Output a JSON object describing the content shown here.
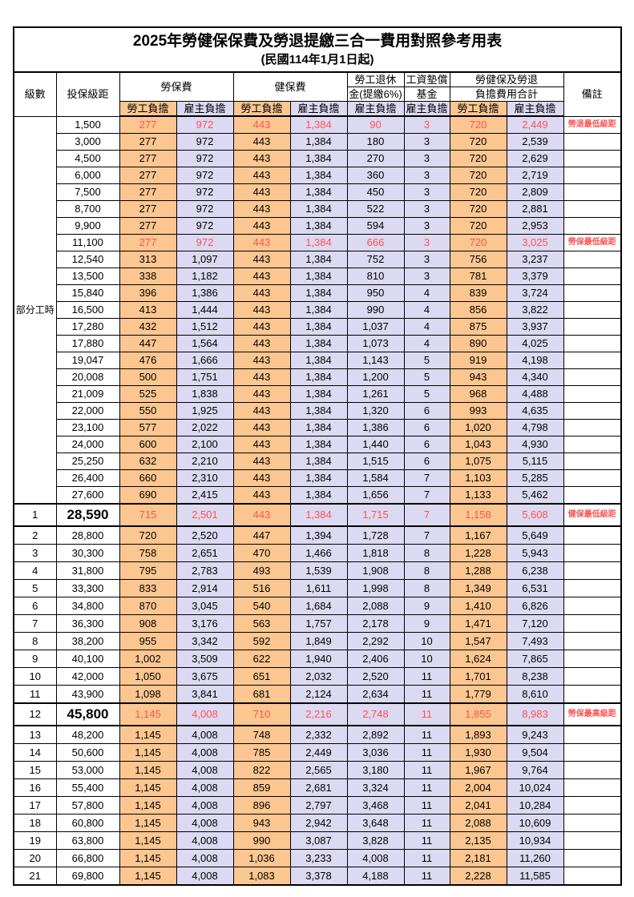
{
  "title": "2025年勞健保保費及勞退提繳三合一費用對照參考用表",
  "subtitle": "(民國114年1月1日起)",
  "colors": {
    "employee_col_bg": "#FBC690",
    "employer_col_bg": "#DCD9F2",
    "highlight_text": "#FF5252",
    "border": "#000000"
  },
  "header": {
    "level": "級數",
    "salary": "投保級距",
    "labor_insurance": "勞保費",
    "health_insurance": "健保費",
    "pension_line1": "勞工退休",
    "pension_line2": "金(提繳6%)",
    "wage_fund_line1": "工資墊償",
    "wage_fund_line2": "基金",
    "total_line1": "勞健保及勞退",
    "total_line2": "負擔費用合計",
    "employee_share": "勞工負擔",
    "employer_share": "雇主負擔",
    "remark": "備註"
  },
  "part_time_label": "部分工時",
  "notes": {
    "pension_min": "勞退最低級距",
    "labor_min": "勞保最低級距",
    "health_min": "健保最低級距",
    "labor_max": "勞保最高級距"
  },
  "rows": [
    {
      "g": "pt",
      "lv": "",
      "s": "1,500",
      "v": [
        "277",
        "972",
        "443",
        "1,384",
        "90",
        "3",
        "720",
        "2,449"
      ],
      "n": "勞退最低級距",
      "hl": true,
      "big": false
    },
    {
      "g": "pt",
      "lv": "",
      "s": "3,000",
      "v": [
        "277",
        "972",
        "443",
        "1,384",
        "180",
        "3",
        "720",
        "2,539"
      ],
      "n": "",
      "hl": false,
      "big": false
    },
    {
      "g": "pt",
      "lv": "",
      "s": "4,500",
      "v": [
        "277",
        "972",
        "443",
        "1,384",
        "270",
        "3",
        "720",
        "2,629"
      ],
      "n": "",
      "hl": false,
      "big": false
    },
    {
      "g": "pt",
      "lv": "",
      "s": "6,000",
      "v": [
        "277",
        "972",
        "443",
        "1,384",
        "360",
        "3",
        "720",
        "2,719"
      ],
      "n": "",
      "hl": false,
      "big": false
    },
    {
      "g": "pt",
      "lv": "",
      "s": "7,500",
      "v": [
        "277",
        "972",
        "443",
        "1,384",
        "450",
        "3",
        "720",
        "2,809"
      ],
      "n": "",
      "hl": false,
      "big": false
    },
    {
      "g": "pt",
      "lv": "",
      "s": "8,700",
      "v": [
        "277",
        "972",
        "443",
        "1,384",
        "522",
        "3",
        "720",
        "2,881"
      ],
      "n": "",
      "hl": false,
      "big": false
    },
    {
      "g": "pt",
      "lv": "",
      "s": "9,900",
      "v": [
        "277",
        "972",
        "443",
        "1,384",
        "594",
        "3",
        "720",
        "2,953"
      ],
      "n": "",
      "hl": false,
      "big": false
    },
    {
      "g": "pt",
      "lv": "",
      "s": "11,100",
      "v": [
        "277",
        "972",
        "443",
        "1,384",
        "666",
        "3",
        "720",
        "3,025"
      ],
      "n": "勞保最低級距",
      "hl": true,
      "big": false
    },
    {
      "g": "pt",
      "lv": "",
      "s": "12,540",
      "v": [
        "313",
        "1,097",
        "443",
        "1,384",
        "752",
        "3",
        "756",
        "3,237"
      ],
      "n": "",
      "hl": false,
      "big": false
    },
    {
      "g": "pt",
      "lv": "",
      "s": "13,500",
      "v": [
        "338",
        "1,182",
        "443",
        "1,384",
        "810",
        "3",
        "781",
        "3,379"
      ],
      "n": "",
      "hl": false,
      "big": false
    },
    {
      "g": "pt",
      "lv": "",
      "s": "15,840",
      "v": [
        "396",
        "1,386",
        "443",
        "1,384",
        "950",
        "4",
        "839",
        "3,724"
      ],
      "n": "",
      "hl": false,
      "big": false
    },
    {
      "g": "pt",
      "lv": "",
      "s": "16,500",
      "v": [
        "413",
        "1,444",
        "443",
        "1,384",
        "990",
        "4",
        "856",
        "3,822"
      ],
      "n": "",
      "hl": false,
      "big": false
    },
    {
      "g": "pt",
      "lv": "",
      "s": "17,280",
      "v": [
        "432",
        "1,512",
        "443",
        "1,384",
        "1,037",
        "4",
        "875",
        "3,937"
      ],
      "n": "",
      "hl": false,
      "big": false
    },
    {
      "g": "pt",
      "lv": "",
      "s": "17,880",
      "v": [
        "447",
        "1,564",
        "443",
        "1,384",
        "1,073",
        "4",
        "890",
        "4,025"
      ],
      "n": "",
      "hl": false,
      "big": false
    },
    {
      "g": "pt",
      "lv": "",
      "s": "19,047",
      "v": [
        "476",
        "1,666",
        "443",
        "1,384",
        "1,143",
        "5",
        "919",
        "4,198"
      ],
      "n": "",
      "hl": false,
      "big": false
    },
    {
      "g": "pt",
      "lv": "",
      "s": "20,008",
      "v": [
        "500",
        "1,751",
        "443",
        "1,384",
        "1,200",
        "5",
        "943",
        "4,340"
      ],
      "n": "",
      "hl": false,
      "big": false
    },
    {
      "g": "pt",
      "lv": "",
      "s": "21,009",
      "v": [
        "525",
        "1,838",
        "443",
        "1,384",
        "1,261",
        "5",
        "968",
        "4,488"
      ],
      "n": "",
      "hl": false,
      "big": false
    },
    {
      "g": "pt",
      "lv": "",
      "s": "22,000",
      "v": [
        "550",
        "1,925",
        "443",
        "1,384",
        "1,320",
        "6",
        "993",
        "4,635"
      ],
      "n": "",
      "hl": false,
      "big": false
    },
    {
      "g": "pt",
      "lv": "",
      "s": "23,100",
      "v": [
        "577",
        "2,022",
        "443",
        "1,384",
        "1,386",
        "6",
        "1,020",
        "4,798"
      ],
      "n": "",
      "hl": false,
      "big": false
    },
    {
      "g": "pt",
      "lv": "",
      "s": "24,000",
      "v": [
        "600",
        "2,100",
        "443",
        "1,384",
        "1,440",
        "6",
        "1,043",
        "4,930"
      ],
      "n": "",
      "hl": false,
      "big": false
    },
    {
      "g": "pt",
      "lv": "",
      "s": "25,250",
      "v": [
        "632",
        "2,210",
        "443",
        "1,384",
        "1,515",
        "6",
        "1,075",
        "5,115"
      ],
      "n": "",
      "hl": false,
      "big": false
    },
    {
      "g": "pt",
      "lv": "",
      "s": "26,400",
      "v": [
        "660",
        "2,310",
        "443",
        "1,384",
        "1,584",
        "7",
        "1,103",
        "5,285"
      ],
      "n": "",
      "hl": false,
      "big": false
    },
    {
      "g": "pt",
      "lv": "",
      "s": "27,600",
      "v": [
        "690",
        "2,415",
        "443",
        "1,384",
        "1,656",
        "7",
        "1,133",
        "5,462"
      ],
      "n": "",
      "hl": false,
      "big": false
    },
    {
      "g": "num",
      "lv": "1",
      "s": "28,590",
      "v": [
        "715",
        "2,501",
        "443",
        "1,384",
        "1,715",
        "7",
        "1,158",
        "5,608"
      ],
      "n": "健保最低級距",
      "hl": true,
      "big": true
    },
    {
      "g": "num",
      "lv": "2",
      "s": "28,800",
      "v": [
        "720",
        "2,520",
        "447",
        "1,394",
        "1,728",
        "7",
        "1,167",
        "5,649"
      ],
      "n": "",
      "hl": false,
      "big": false
    },
    {
      "g": "num",
      "lv": "3",
      "s": "30,300",
      "v": [
        "758",
        "2,651",
        "470",
        "1,466",
        "1,818",
        "8",
        "1,228",
        "5,943"
      ],
      "n": "",
      "hl": false,
      "big": false
    },
    {
      "g": "num",
      "lv": "4",
      "s": "31,800",
      "v": [
        "795",
        "2,783",
        "493",
        "1,539",
        "1,908",
        "8",
        "1,288",
        "6,238"
      ],
      "n": "",
      "hl": false,
      "big": false
    },
    {
      "g": "num",
      "lv": "5",
      "s": "33,300",
      "v": [
        "833",
        "2,914",
        "516",
        "1,611",
        "1,998",
        "8",
        "1,349",
        "6,531"
      ],
      "n": "",
      "hl": false,
      "big": false
    },
    {
      "g": "num",
      "lv": "6",
      "s": "34,800",
      "v": [
        "870",
        "3,045",
        "540",
        "1,684",
        "2,088",
        "9",
        "1,410",
        "6,826"
      ],
      "n": "",
      "hl": false,
      "big": false
    },
    {
      "g": "num",
      "lv": "7",
      "s": "36,300",
      "v": [
        "908",
        "3,176",
        "563",
        "1,757",
        "2,178",
        "9",
        "1,471",
        "7,120"
      ],
      "n": "",
      "hl": false,
      "big": false
    },
    {
      "g": "num",
      "lv": "8",
      "s": "38,200",
      "v": [
        "955",
        "3,342",
        "592",
        "1,849",
        "2,292",
        "10",
        "1,547",
        "7,493"
      ],
      "n": "",
      "hl": false,
      "big": false
    },
    {
      "g": "num",
      "lv": "9",
      "s": "40,100",
      "v": [
        "1,002",
        "3,509",
        "622",
        "1,940",
        "2,406",
        "10",
        "1,624",
        "7,865"
      ],
      "n": "",
      "hl": false,
      "big": false
    },
    {
      "g": "num",
      "lv": "10",
      "s": "42,000",
      "v": [
        "1,050",
        "3,675",
        "651",
        "2,032",
        "2,520",
        "11",
        "1,701",
        "8,238"
      ],
      "n": "",
      "hl": false,
      "big": false
    },
    {
      "g": "num",
      "lv": "11",
      "s": "43,900",
      "v": [
        "1,098",
        "3,841",
        "681",
        "2,124",
        "2,634",
        "11",
        "1,779",
        "8,610"
      ],
      "n": "",
      "hl": false,
      "big": false
    },
    {
      "g": "num",
      "lv": "12",
      "s": "45,800",
      "v": [
        "1,145",
        "4,008",
        "710",
        "2,216",
        "2,748",
        "11",
        "1,855",
        "8,983"
      ],
      "n": "勞保最高級距",
      "hl": true,
      "big": true
    },
    {
      "g": "num",
      "lv": "13",
      "s": "48,200",
      "v": [
        "1,145",
        "4,008",
        "748",
        "2,332",
        "2,892",
        "11",
        "1,893",
        "9,243"
      ],
      "n": "",
      "hl": false,
      "big": false
    },
    {
      "g": "num",
      "lv": "14",
      "s": "50,600",
      "v": [
        "1,145",
        "4,008",
        "785",
        "2,449",
        "3,036",
        "11",
        "1,930",
        "9,504"
      ],
      "n": "",
      "hl": false,
      "big": false
    },
    {
      "g": "num",
      "lv": "15",
      "s": "53,000",
      "v": [
        "1,145",
        "4,008",
        "822",
        "2,565",
        "3,180",
        "11",
        "1,967",
        "9,764"
      ],
      "n": "",
      "hl": false,
      "big": false
    },
    {
      "g": "num",
      "lv": "16",
      "s": "55,400",
      "v": [
        "1,145",
        "4,008",
        "859",
        "2,681",
        "3,324",
        "11",
        "2,004",
        "10,024"
      ],
      "n": "",
      "hl": false,
      "big": false
    },
    {
      "g": "num",
      "lv": "17",
      "s": "57,800",
      "v": [
        "1,145",
        "4,008",
        "896",
        "2,797",
        "3,468",
        "11",
        "2,041",
        "10,284"
      ],
      "n": "",
      "hl": false,
      "big": false
    },
    {
      "g": "num",
      "lv": "18",
      "s": "60,800",
      "v": [
        "1,145",
        "4,008",
        "943",
        "2,942",
        "3,648",
        "11",
        "2,088",
        "10,609"
      ],
      "n": "",
      "hl": false,
      "big": false
    },
    {
      "g": "num",
      "lv": "19",
      "s": "63,800",
      "v": [
        "1,145",
        "4,008",
        "990",
        "3,087",
        "3,828",
        "11",
        "2,135",
        "10,934"
      ],
      "n": "",
      "hl": false,
      "big": false
    },
    {
      "g": "num",
      "lv": "20",
      "s": "66,800",
      "v": [
        "1,145",
        "4,008",
        "1,036",
        "3,233",
        "4,008",
        "11",
        "2,181",
        "11,260"
      ],
      "n": "",
      "hl": false,
      "big": false
    },
    {
      "g": "num",
      "lv": "21",
      "s": "69,800",
      "v": [
        "1,145",
        "4,008",
        "1,083",
        "3,378",
        "4,188",
        "11",
        "2,228",
        "11,585"
      ],
      "n": "",
      "hl": false,
      "big": false
    }
  ]
}
